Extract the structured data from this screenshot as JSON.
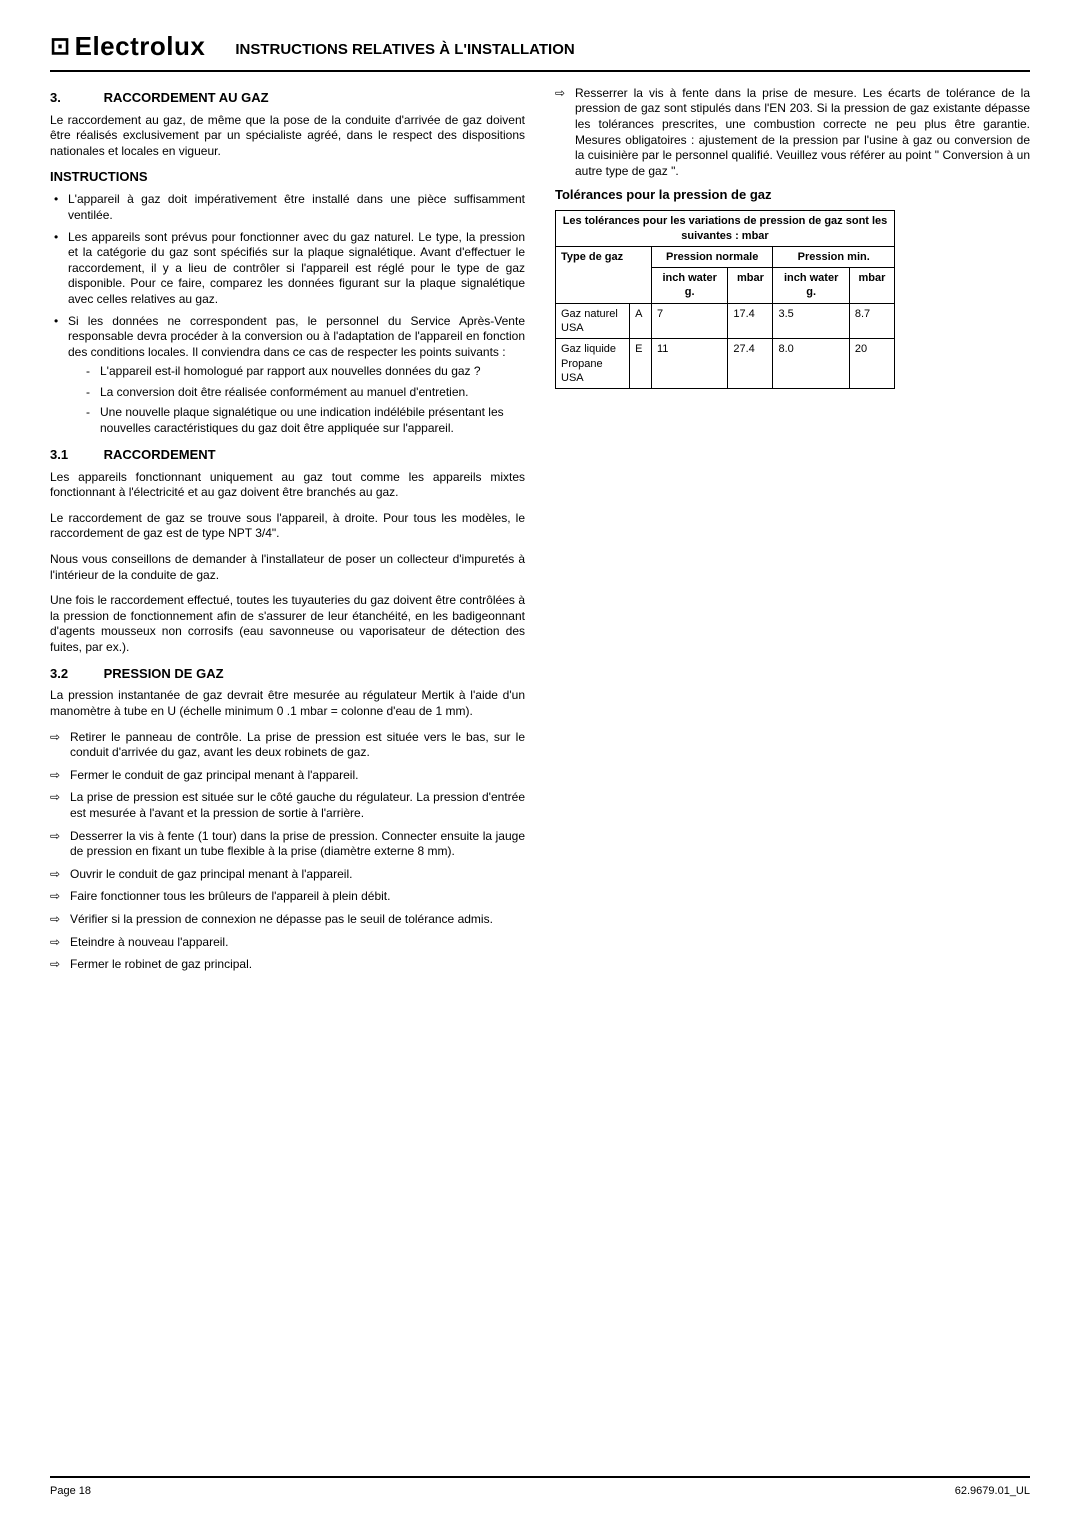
{
  "colors": {
    "text": "#000000",
    "background": "#ffffff",
    "rule": "#000000",
    "table_border": "#000000"
  },
  "typography": {
    "body_fontsize_pt": 9,
    "heading_fontsize_pt": 10,
    "logo_fontsize_pt": 20,
    "font_family": "Arial, Helvetica, sans-serif"
  },
  "header": {
    "logo_text": "Electrolux",
    "logo_icon": "⊡",
    "title": "INSTRUCTIONS RELATIVES À L'INSTALLATION"
  },
  "left": {
    "h1_num": "3.",
    "h1_text": "RACCORDEMENT AU GAZ",
    "p1": "Le raccordement au gaz, de même que la pose de la conduite d'arrivée de gaz doivent être réalisés exclusivement par un spécialiste agréé, dans le respect des dispositions nationales et locales en vigueur.",
    "instr_head": "INSTRUCTIONS",
    "bullets": [
      "L'appareil à gaz doit impérativement être installé dans une pièce suffisamment ventilée.",
      "Les appareils sont prévus pour fonctionner avec du gaz naturel. Le type, la pression et la catégorie du gaz sont spécifiés sur la plaque signalétique. Avant d'effectuer le raccordement, il y a lieu de contrôler si l'appareil est réglé pour le type de gaz disponible. Pour ce faire, comparez les données figurant sur la plaque signalétique avec celles relatives au gaz.",
      "Si les données ne correspondent pas, le personnel du Service Après-Vente responsable devra procéder à la conversion ou à l'adaptation de l'appareil en fonction des conditions locales. Il conviendra dans ce cas de respecter les points suivants :"
    ],
    "dashes": [
      "L'appareil est-il homologué par rapport aux nouvelles données du gaz ?",
      "La conversion doit être réalisée conformément au manuel d'entretien.",
      "Une nouvelle plaque signalétique ou une indication indélébile présentant les nouvelles caractéristiques du gaz doit être appliquée sur l'appareil."
    ],
    "h31_num": "3.1",
    "h31_text": "RACCORDEMENT",
    "p31a": "Les appareils fonctionnant uniquement au gaz tout comme les appareils mixtes fonctionnant à l'électricité et au gaz doivent être branchés au gaz.",
    "p31b": "Le raccordement de gaz se trouve sous l'appareil, à droite. Pour tous les modèles, le raccordement de gaz est de type NPT 3/4\".",
    "p31c": "Nous vous conseillons de demander à l'installateur de poser un collecteur d'impuretés à l'intérieur de la conduite de gaz.",
    "p31d": "Une fois le raccordement effectué, toutes les tuyauteries du gaz doivent être contrôlées à la pression de fonctionnement afin de s'assurer de leur étanchéité, en les badigeonnant d'agents mousseux non corrosifs (eau savonneuse ou vaporisateur de détection des fuites, par ex.).",
    "h32_num": "3.2",
    "h32_text": "PRESSION DE GAZ",
    "p32a": "La pression instantanée de gaz devrait être mesurée au régulateur Mertik à l'aide d'un manomètre à tube en U (échelle minimum 0 .1 mbar = colonne d'eau de 1 mm).",
    "arrows": [
      "Retirer le panneau de contrôle. La prise de pression est située vers le bas, sur le conduit d'arrivée du gaz, avant les deux robinets de gaz.",
      "Fermer le conduit de gaz principal menant à l'appareil.",
      "La prise de pression est située sur le côté gauche du régulateur. La pression d'entrée est mesurée à l'avant et la pression de sortie à l'arrière.",
      "Desserrer la vis à fente (1 tour) dans la prise de pression. Connecter ensuite la jauge de pression en fixant un tube flexible à la prise (diamètre externe 8 mm).",
      "Ouvrir le conduit de gaz principal menant à l'appareil.",
      "Faire fonctionner tous les brûleurs de l'appareil à plein débit.",
      "Vérifier si la pression de connexion ne dépasse pas le seuil de tolérance admis.",
      "Eteindre à nouveau l'appareil.",
      "Fermer le robinet de gaz principal."
    ]
  },
  "right": {
    "arrow_item": "Resserrer la vis à fente dans la prise de mesure. Les écarts de tolérance de la pression de gaz sont stipulés dans l'EN 203. Si la pression de gaz existante dépasse les tolérances prescrites, une combustion correcte ne peu plus être garantie. Mesures obligatoires : ajustement de la pression par l'usine à gaz ou conversion de la cuisinière par le personnel qualifié. Veuillez vous référer au point \" Conversion à un autre type de gaz \".",
    "table_head": "Tolérances pour la pression de gaz",
    "table": {
      "caption": "Les tolérances pour les variations de pression de gaz sont les suivantes : mbar",
      "col_headers": {
        "type": "Type de gaz",
        "normale": "Pression normale",
        "min": "Pression min.",
        "inch": "inch water g.",
        "mbar": "mbar"
      },
      "rows": [
        {
          "label_l1": "Gaz naturel",
          "label_l2": "USA",
          "label_l3": "",
          "code": "A",
          "norm_inch": "7",
          "norm_mbar": "17.4",
          "min_inch": "3.5",
          "min_mbar": "8.7"
        },
        {
          "label_l1": "Gaz liquide",
          "label_l2": "Propane",
          "label_l3": "USA",
          "code": "E",
          "norm_inch": "11",
          "norm_mbar": "27.4",
          "min_inch": "8.0",
          "min_mbar": "20"
        }
      ]
    }
  },
  "footer": {
    "left": "Page 18",
    "right": "62.9679.01_UL"
  }
}
